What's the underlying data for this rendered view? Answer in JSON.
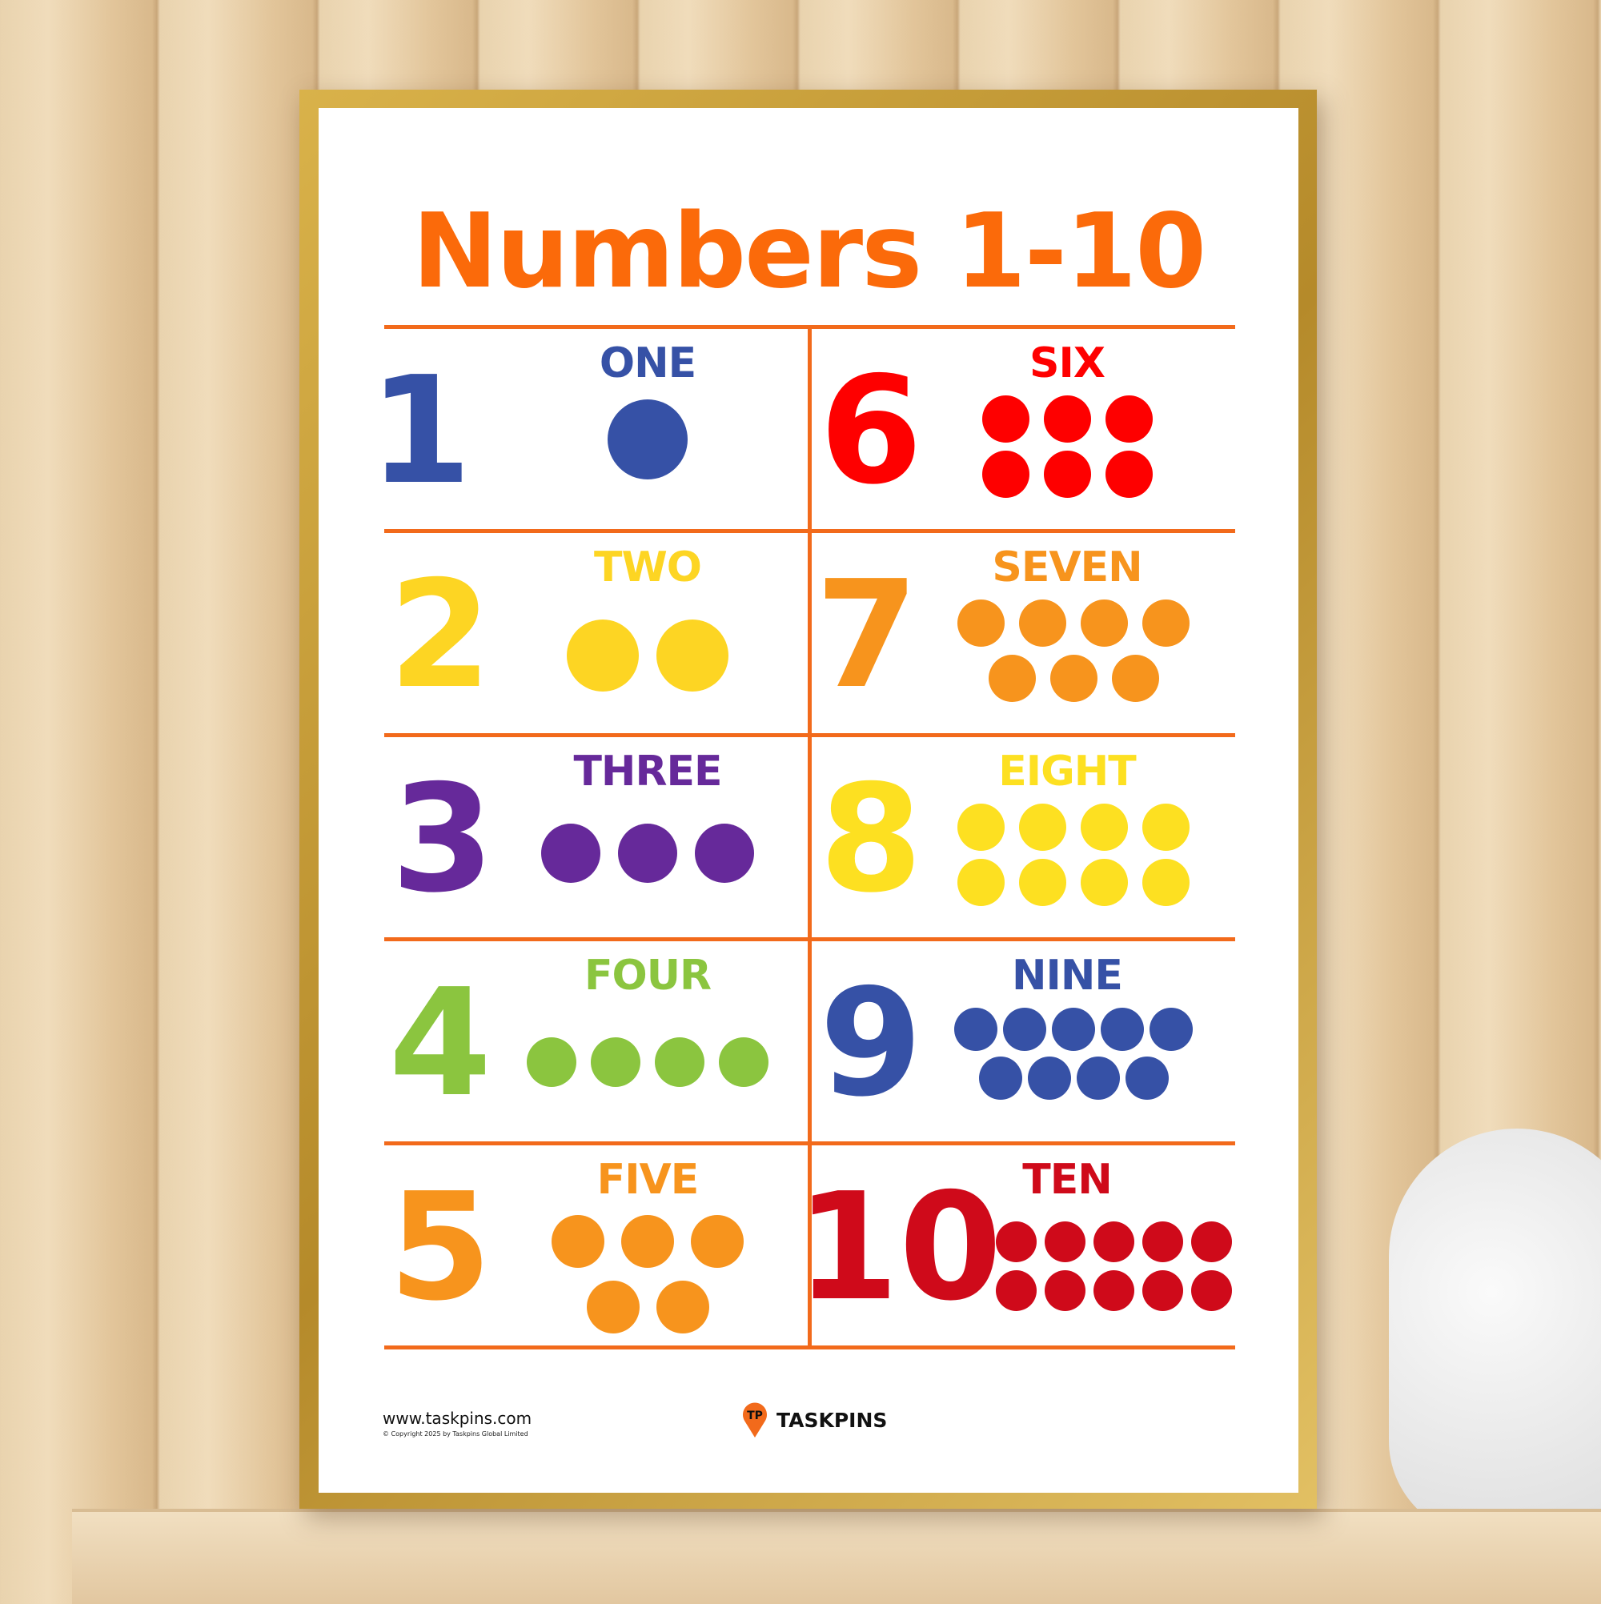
{
  "poster": {
    "title": "Numbers 1-10",
    "accent_color": "#f26a1b",
    "items": [
      {
        "number": "1",
        "word": "ONE",
        "color": "#3651a6",
        "dot_rows": [
          1
        ]
      },
      {
        "number": "2",
        "word": "TWO",
        "color": "#fdd523",
        "dot_rows": [
          2
        ]
      },
      {
        "number": "3",
        "word": "THREE",
        "color": "#66299a",
        "dot_rows": [
          3
        ]
      },
      {
        "number": "4",
        "word": "FOUR",
        "color": "#8bc53f",
        "dot_rows": [
          4
        ]
      },
      {
        "number": "5",
        "word": "FIVE",
        "color": "#f7941d",
        "dot_rows": [
          3,
          2
        ]
      },
      {
        "number": "6",
        "word": "SIX",
        "color": "#fe0000",
        "dot_rows": [
          3,
          3
        ]
      },
      {
        "number": "7",
        "word": "SEVEN",
        "color": "#f7941d",
        "dot_rows": [
          4,
          3
        ]
      },
      {
        "number": "8",
        "word": "EIGHT",
        "color": "#fde021",
        "dot_rows": [
          4,
          4
        ]
      },
      {
        "number": "9",
        "word": "NINE",
        "color": "#3651a6",
        "dot_rows": [
          5,
          4
        ]
      },
      {
        "number": "10",
        "word": "TEN",
        "color": "#cf0a1a",
        "dot_rows": [
          5,
          5
        ]
      }
    ],
    "footer": {
      "url": "www.taskpins.com",
      "copyright": "© Copyright 2025 by Taskpins Global Limited",
      "brand": "TASKPINS",
      "logo_letters": "TP"
    }
  }
}
